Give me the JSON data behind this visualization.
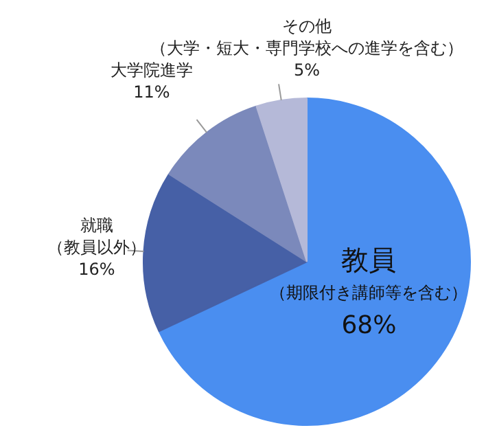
{
  "chart_data": {
    "type": "pie",
    "categories": [
      "教員（期限付き講師等を含む）",
      "就職（教員以外）",
      "大学院進学",
      "その他（大学・短大・専門学校への進学を含む）"
    ],
    "values": [
      68,
      16,
      11,
      5
    ],
    "value_labels": [
      "68%",
      "16%",
      "11%",
      "5%"
    ],
    "colors": [
      "#4a8ef0",
      "#4660a6",
      "#7b89bb",
      "#b5b9d8"
    ]
  }
}
